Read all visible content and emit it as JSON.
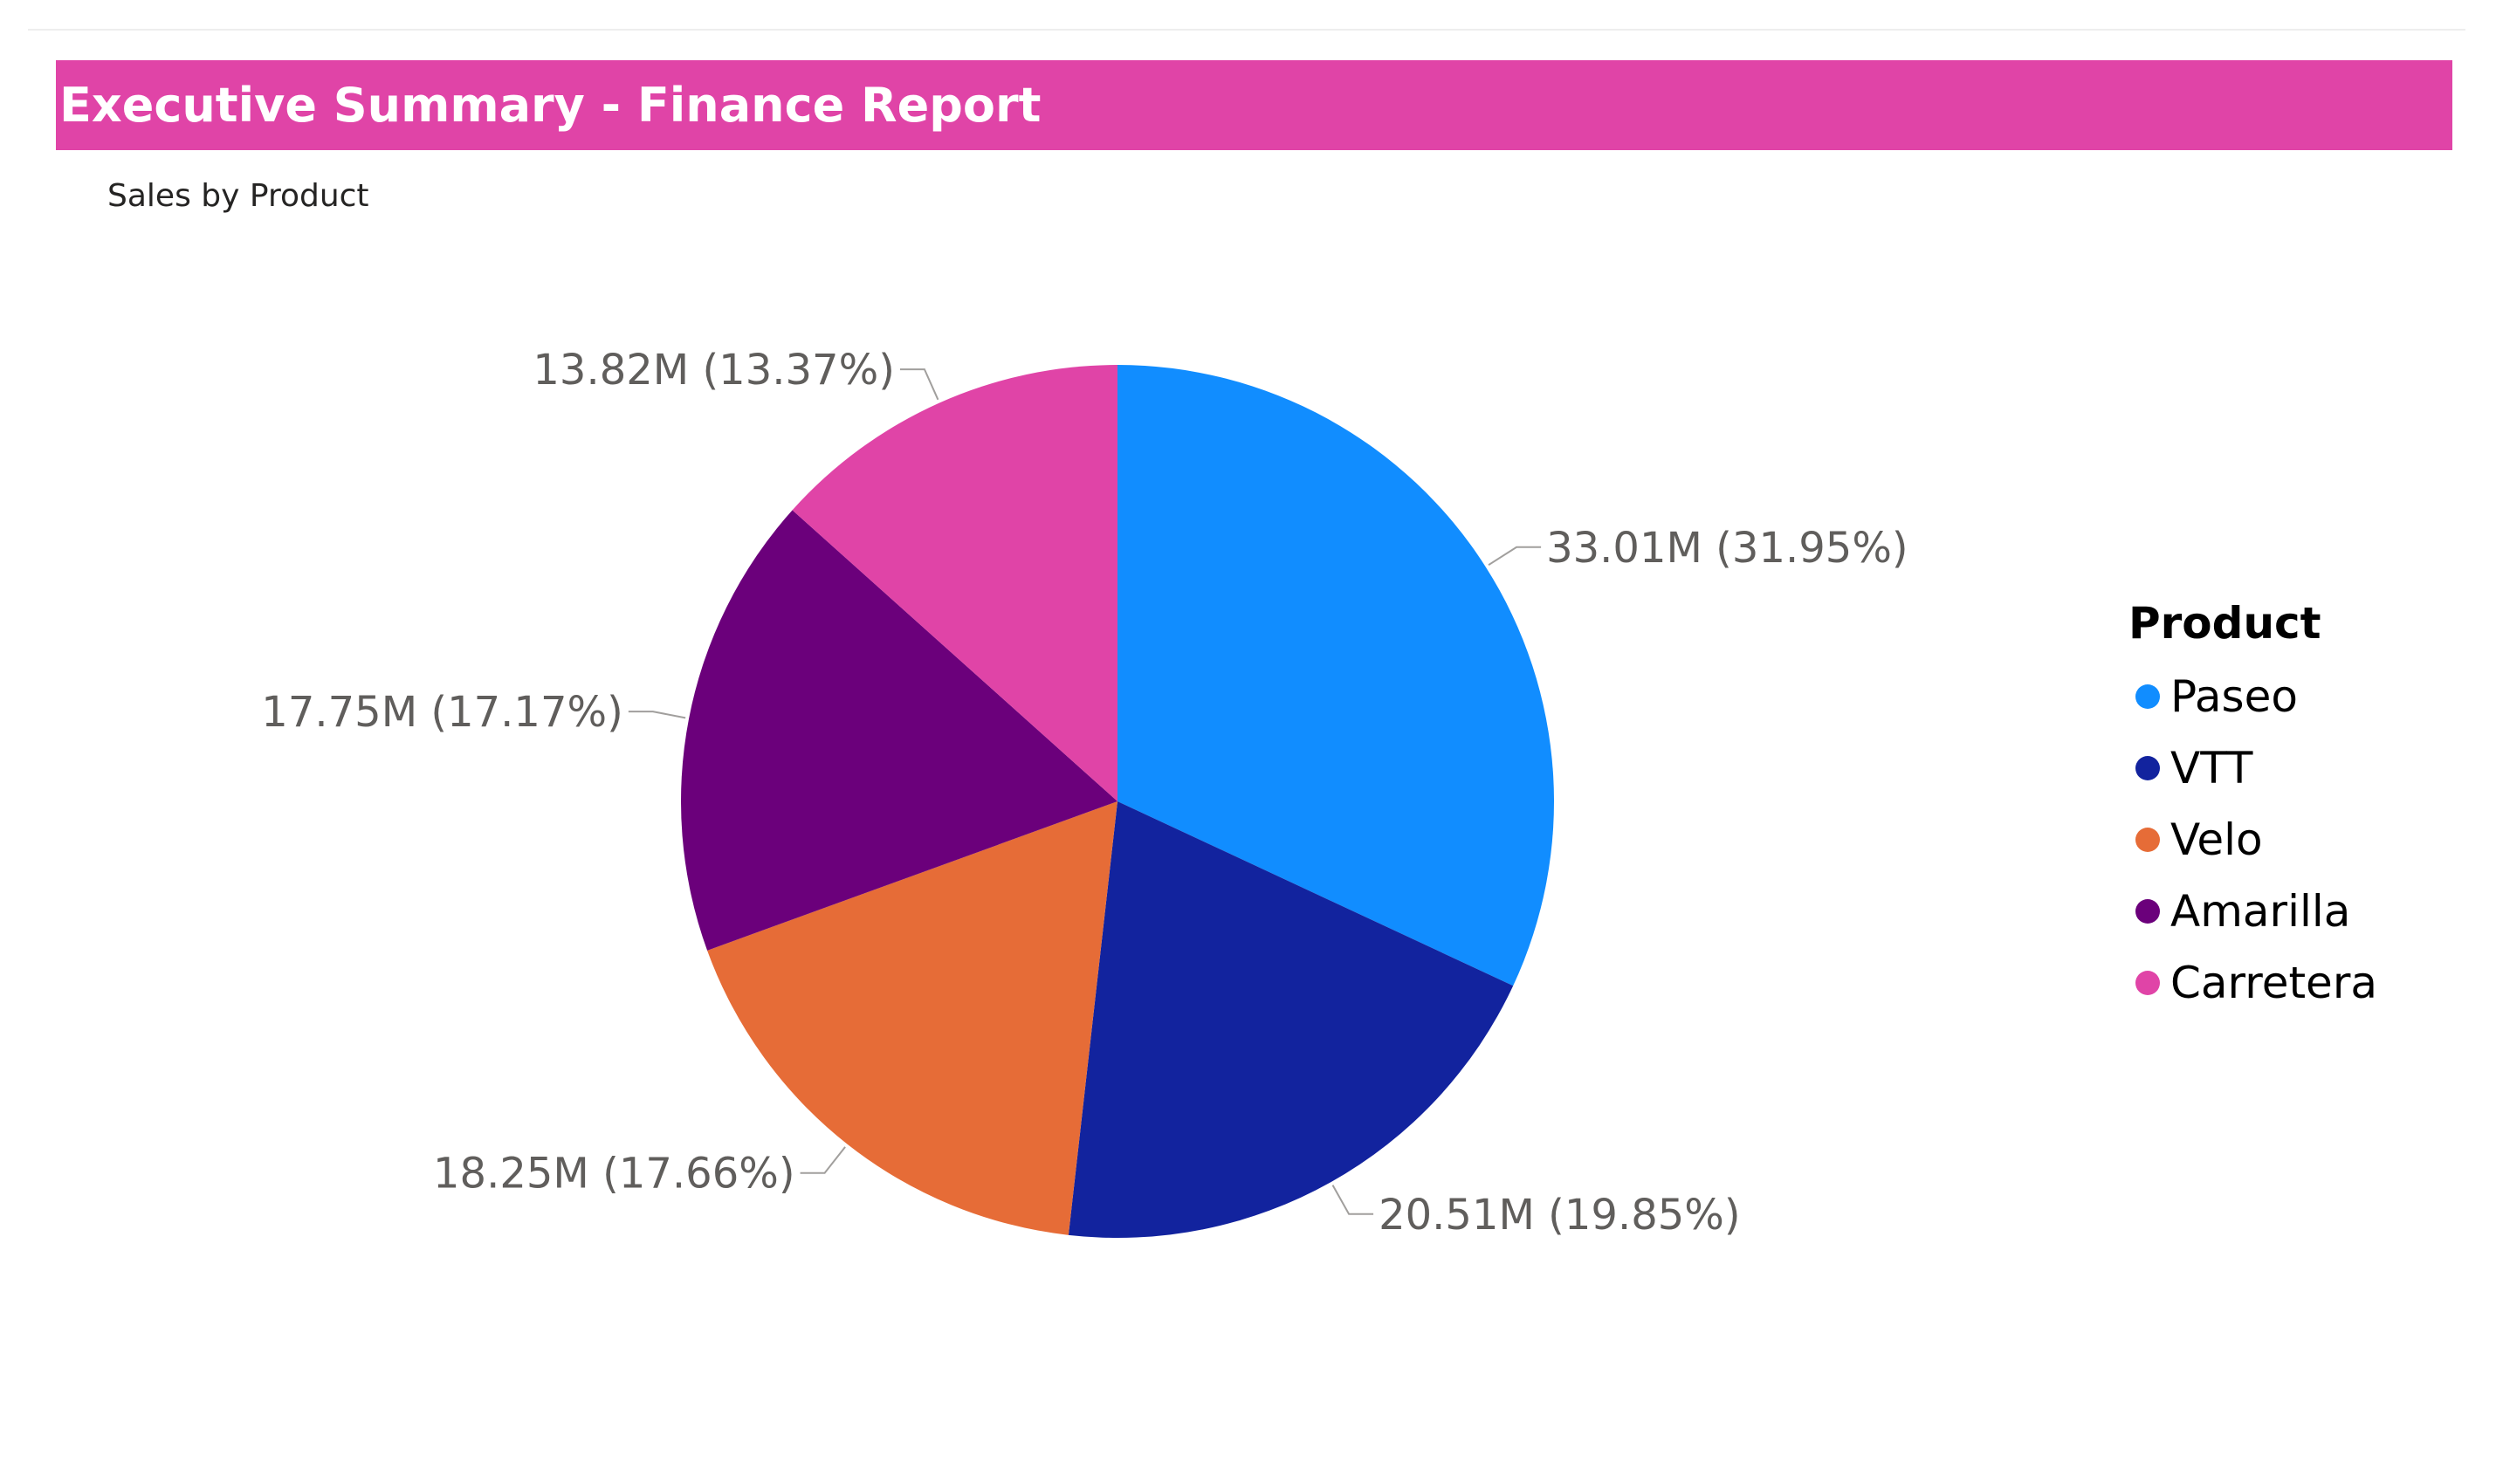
{
  "header": {
    "title": "Executive Summary - Finance Report",
    "background": "#E044A7"
  },
  "chart_data": {
    "type": "pie",
    "title": "Sales by Product",
    "legend_title": "Product",
    "legend_position": "right",
    "slices": [
      {
        "name": "Paseo",
        "value": 33.01,
        "label": "33.01M (31.95%)",
        "color": "#118DFF"
      },
      {
        "name": "VTT",
        "value": 20.51,
        "label": "20.51M (19.85%)",
        "color": "#12239E"
      },
      {
        "name": "Velo",
        "value": 18.25,
        "label": "18.25M (17.66%)",
        "color": "#E66C37"
      },
      {
        "name": "Amarilla",
        "value": 17.75,
        "label": "17.75M (17.17%)",
        "color": "#6B007B"
      },
      {
        "name": "Carretera",
        "value": 13.82,
        "label": "13.82M (13.37%)",
        "color": "#E044A7"
      }
    ]
  }
}
